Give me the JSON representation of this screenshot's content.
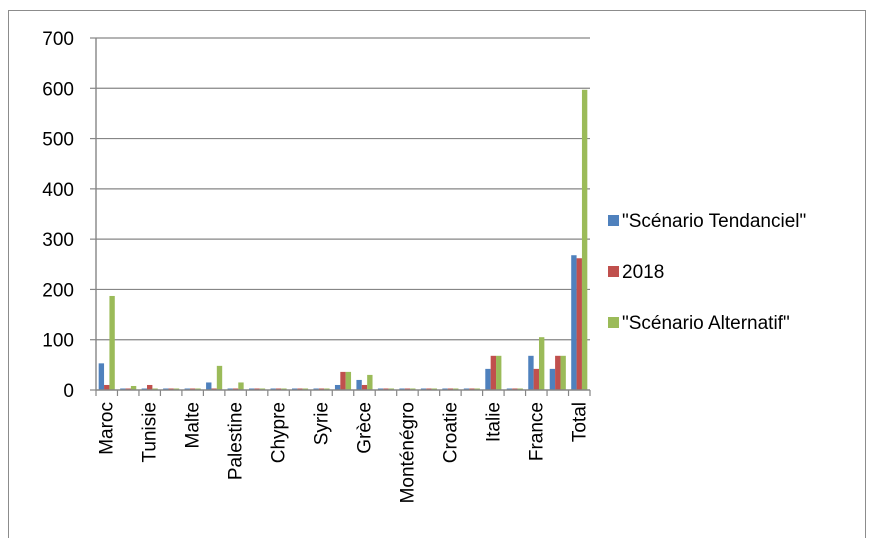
{
  "chart_data": {
    "type": "bar",
    "title": "",
    "xlabel": "",
    "ylabel": "",
    "ylim": [
      0,
      700
    ],
    "yticks": [
      0,
      100,
      200,
      300,
      400,
      500,
      600,
      700
    ],
    "grid": true,
    "legend_position": "right",
    "categories": [
      "Maroc",
      "",
      "Tunisie",
      "",
      "Malte",
      "",
      "Palestine",
      "",
      "Chypre",
      "",
      "Syrie",
      "",
      "Grèce",
      "",
      "Monténégro",
      "",
      "Croatie",
      "",
      "Italie",
      "",
      "France",
      "",
      "Total"
    ],
    "series": [
      {
        "name": "\"Scénario Tendanciel\"",
        "color": "#4f81bd",
        "values": [
          53,
          3,
          3,
          3,
          3,
          15,
          3,
          3,
          3,
          3,
          3,
          10,
          20,
          3,
          3,
          3,
          3,
          3,
          42,
          3,
          68,
          42,
          268
        ]
      },
      {
        "name": "2018",
        "color": "#c0504d",
        "values": [
          10,
          3,
          10,
          3,
          3,
          3,
          3,
          3,
          3,
          3,
          3,
          36,
          10,
          3,
          3,
          3,
          3,
          3,
          68,
          3,
          42,
          68,
          262
        ]
      },
      {
        "name": "\"Scénario Alternatif\"",
        "color": "#9bbb59",
        "values": [
          187,
          8,
          3,
          3,
          3,
          48,
          15,
          3,
          3,
          3,
          3,
          36,
          30,
          3,
          3,
          3,
          3,
          3,
          68,
          3,
          105,
          68,
          597
        ]
      }
    ]
  }
}
